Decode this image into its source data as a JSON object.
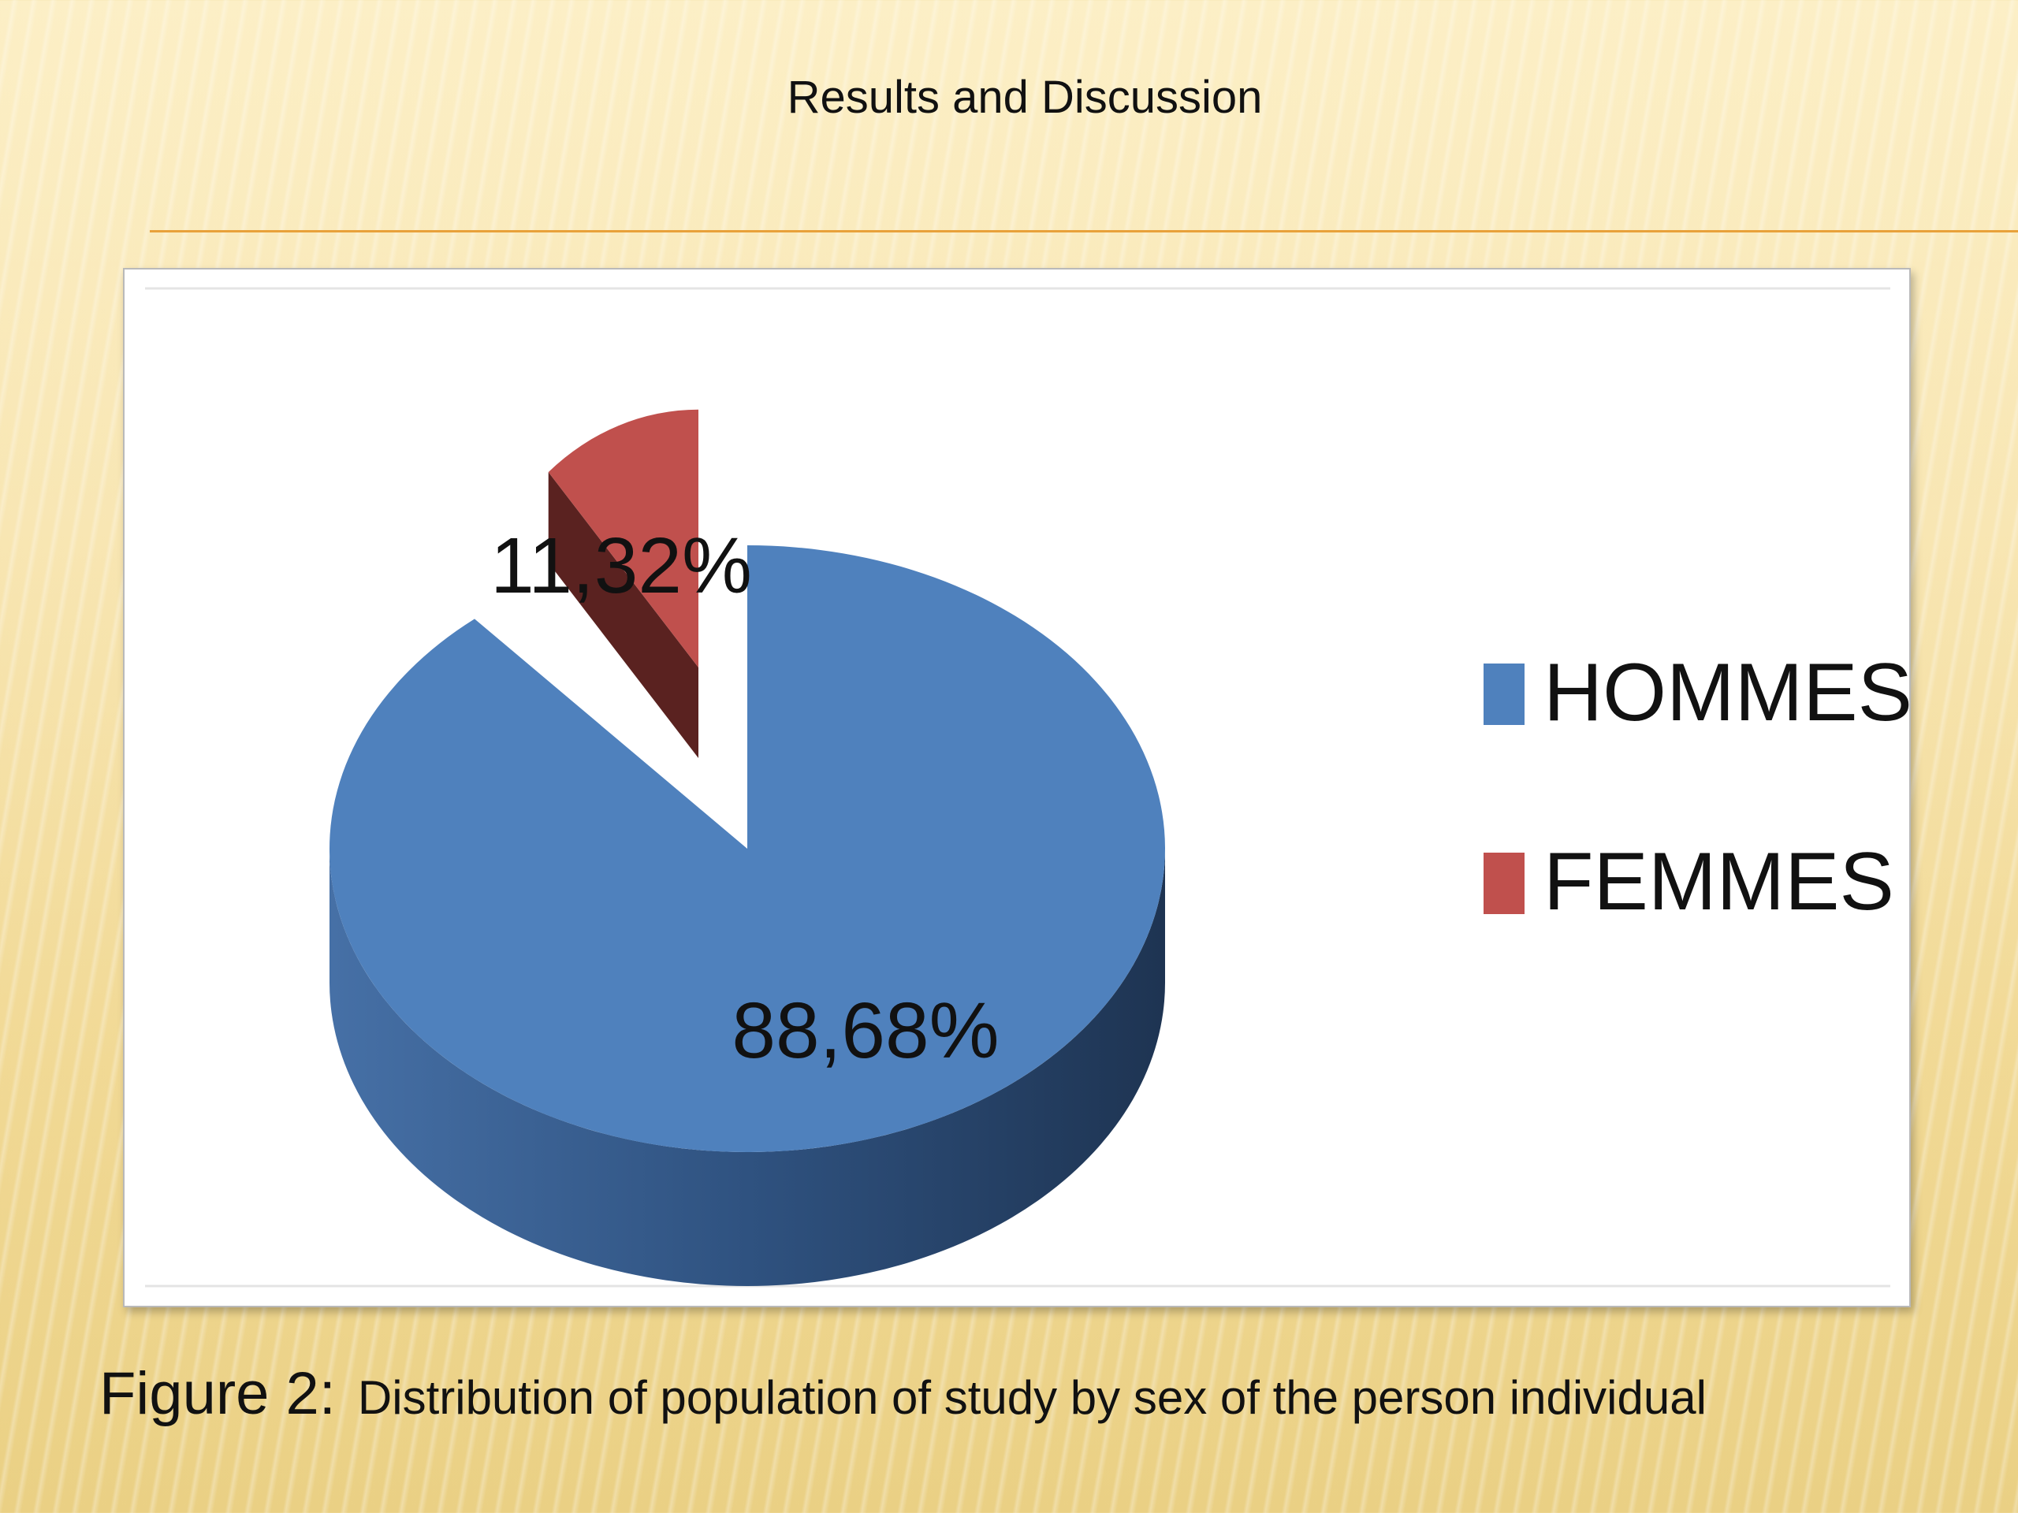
{
  "slide": {
    "title": "Results and Discussion",
    "caption_label": "Figure 2:",
    "caption_text": "Distribution of population of study by sex of the person individual"
  },
  "colors": {
    "HOMMES": "#4f81bd",
    "FEMMES": "#c0504d"
  },
  "chart_data": {
    "type": "pie",
    "title": "",
    "categories": [
      "HOMMES",
      "FEMMES"
    ],
    "values": [
      88.68,
      11.32
    ],
    "data_labels": [
      "88,68%",
      "11,32%"
    ],
    "legend_position": "right",
    "style": "3d-exploded"
  }
}
